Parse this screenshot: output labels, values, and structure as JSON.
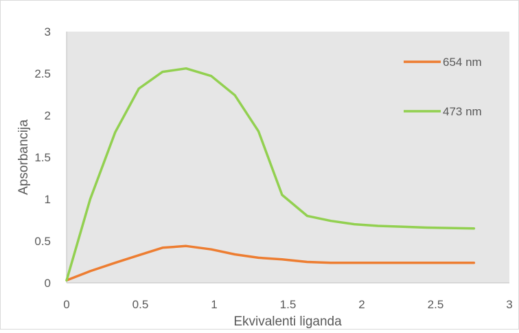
{
  "chart_data": {
    "type": "line",
    "title": "",
    "xlabel": "Ekvivalenti liganda",
    "ylabel": "Apsorbancija",
    "xlim": [
      0,
      3
    ],
    "ylim": [
      0,
      3
    ],
    "x_ticks": [
      "0",
      "0.5",
      "1",
      "1.5",
      "2",
      "2.5",
      "3"
    ],
    "y_ticks": [
      "0",
      "0.5",
      "1",
      "1.5",
      "2",
      "2.5",
      "3"
    ],
    "grid": false,
    "legend_position": "top-right",
    "plot_background": "#e6e6e6",
    "series": [
      {
        "name": "654 nm",
        "color": "#ed7d31",
        "x": [
          0,
          0.16,
          0.33,
          0.49,
          0.65,
          0.81,
          0.98,
          1.14,
          1.3,
          1.46,
          1.63,
          1.79,
          1.95,
          2.11,
          2.28,
          2.44,
          2.76
        ],
        "y": [
          0.03,
          0.14,
          0.24,
          0.33,
          0.42,
          0.44,
          0.4,
          0.34,
          0.3,
          0.28,
          0.25,
          0.24,
          0.24,
          0.24,
          0.24,
          0.24,
          0.24
        ]
      },
      {
        "name": "473 nm",
        "color": "#92d050",
        "x": [
          0,
          0.16,
          0.33,
          0.49,
          0.65,
          0.81,
          0.98,
          1.14,
          1.3,
          1.46,
          1.63,
          1.79,
          1.95,
          2.11,
          2.28,
          2.44,
          2.76
        ],
        "y": [
          0.03,
          1.0,
          1.8,
          2.32,
          2.52,
          2.56,
          2.47,
          2.24,
          1.81,
          1.05,
          0.8,
          0.74,
          0.7,
          0.68,
          0.67,
          0.66,
          0.65
        ]
      }
    ]
  }
}
